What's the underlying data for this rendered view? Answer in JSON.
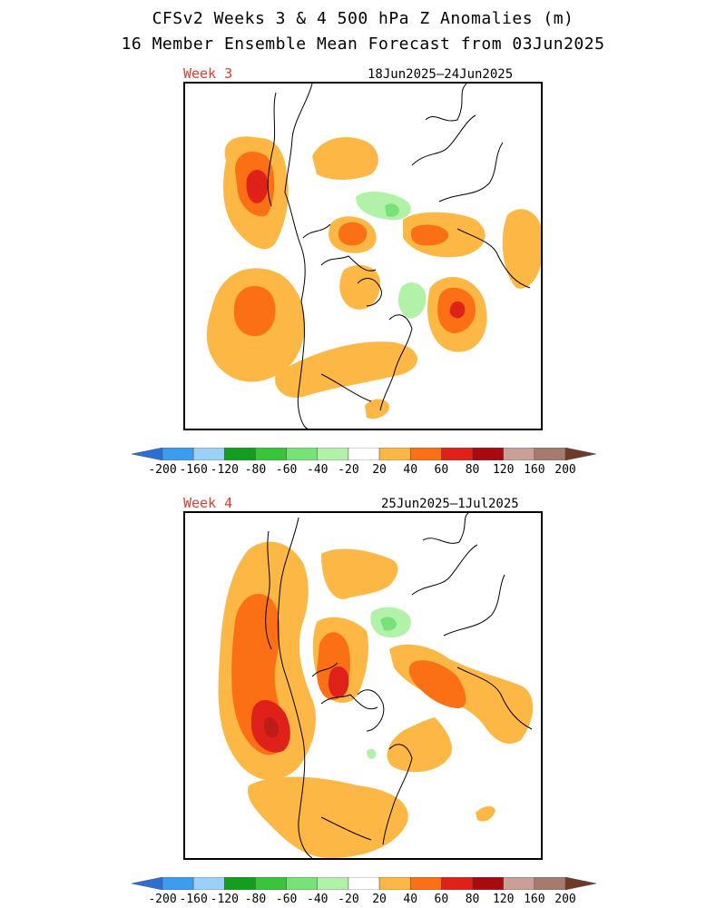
{
  "header": {
    "title_line1": "CFSv2 Weeks 3 & 4 500 hPa Z Anomalies (m)",
    "title_line2": "16 Member Ensemble Mean Forecast from 03Jun2025"
  },
  "panels": [
    {
      "label": "Week 3",
      "date_range": "18Jun2025—24Jun2025"
    },
    {
      "label": "Week 4",
      "date_range": "25Jun2025—1Jul2025"
    }
  ],
  "colorbar": {
    "labels": [
      "-200",
      "-160",
      "-120",
      "-80",
      "-60",
      "-40",
      "-20",
      "20",
      "40",
      "60",
      "80",
      "120",
      "160",
      "200"
    ],
    "colors": [
      "#2b6fd6",
      "#3c9cf0",
      "#9bd0f7",
      "#139e1e",
      "#39c439",
      "#77e277",
      "#b2f2a8",
      "#ffffff",
      "#fdb744",
      "#fb6f15",
      "#e0211a",
      "#a80a0f",
      "#c9a096",
      "#a57b6e",
      "#6e3a26"
    ]
  },
  "map_colors": {
    "c20": "#fdb744",
    "c40": "#fb6f15",
    "c60": "#e0211a",
    "neg20": "#b2f2a8",
    "neg40": "#77e277",
    "coast": "#000000"
  }
}
